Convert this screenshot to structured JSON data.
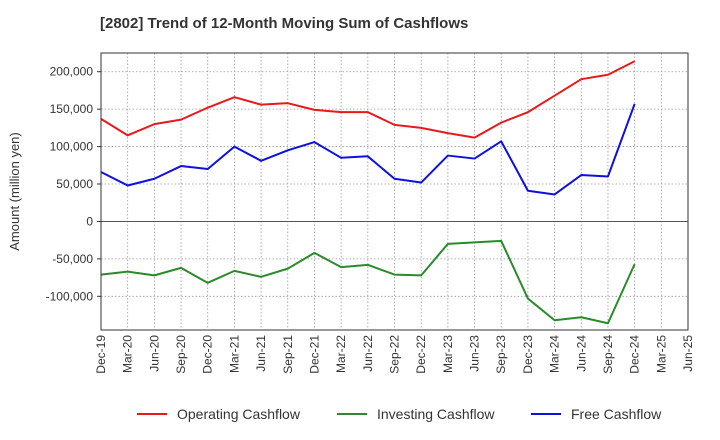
{
  "chart_data": {
    "type": "line",
    "title": "[2802]  Trend of 12-Month Moving Sum of Cashflows",
    "ylabel": "Amount (million yen)",
    "xlabel": "",
    "x": [
      "Dec-19",
      "Mar-20",
      "Jun-20",
      "Sep-20",
      "Dec-20",
      "Mar-21",
      "Jun-21",
      "Sep-21",
      "Dec-21",
      "Mar-22",
      "Jun-22",
      "Sep-22",
      "Dec-22",
      "Mar-23",
      "Jun-23",
      "Sep-23",
      "Dec-23",
      "Mar-24",
      "Jun-24",
      "Sep-24",
      "Dec-24"
    ],
    "xticks": [
      "Dec-19",
      "Mar-20",
      "Jun-20",
      "Sep-20",
      "Dec-20",
      "Mar-21",
      "Jun-21",
      "Sep-21",
      "Dec-21",
      "Mar-22",
      "Jun-22",
      "Sep-22",
      "Dec-22",
      "Mar-23",
      "Jun-23",
      "Sep-23",
      "Dec-23",
      "Mar-24",
      "Jun-24",
      "Sep-24",
      "Dec-24",
      "Mar-25",
      "Jun-25"
    ],
    "ylim": [
      -145000,
      225000
    ],
    "yticks": [
      -100000,
      -50000,
      0,
      50000,
      100000,
      150000,
      200000
    ],
    "ytick_labels": [
      "-100,000",
      "-50,000",
      "0",
      "50,000",
      "100,000",
      "150,000",
      "200,000"
    ],
    "grid": true,
    "legend_position": "bottom",
    "series": [
      {
        "name": "Operating Cashflow",
        "color": "#e8191b",
        "values": [
          137000,
          115000,
          130000,
          136000,
          152000,
          166000,
          156000,
          158000,
          149000,
          146000,
          146000,
          129000,
          125000,
          118000,
          112000,
          132000,
          146000,
          168000,
          190000,
          196000,
          214000
        ]
      },
      {
        "name": "Investing Cashflow",
        "color": "#2b8a2b",
        "values": [
          -71000,
          -67000,
          -72000,
          -62000,
          -82000,
          -66000,
          -74000,
          -63000,
          -42000,
          -61000,
          -58000,
          -71000,
          -72000,
          -30000,
          -28000,
          -26000,
          -103000,
          -132000,
          -128000,
          -136000,
          -57000
        ]
      },
      {
        "name": "Free Cashflow",
        "color": "#1010dd",
        "values": [
          66000,
          48000,
          57000,
          74000,
          70000,
          100000,
          81000,
          95000,
          106000,
          85000,
          87000,
          57000,
          52000,
          88000,
          84000,
          107000,
          41000,
          36000,
          62000,
          60000,
          157000
        ]
      }
    ]
  }
}
